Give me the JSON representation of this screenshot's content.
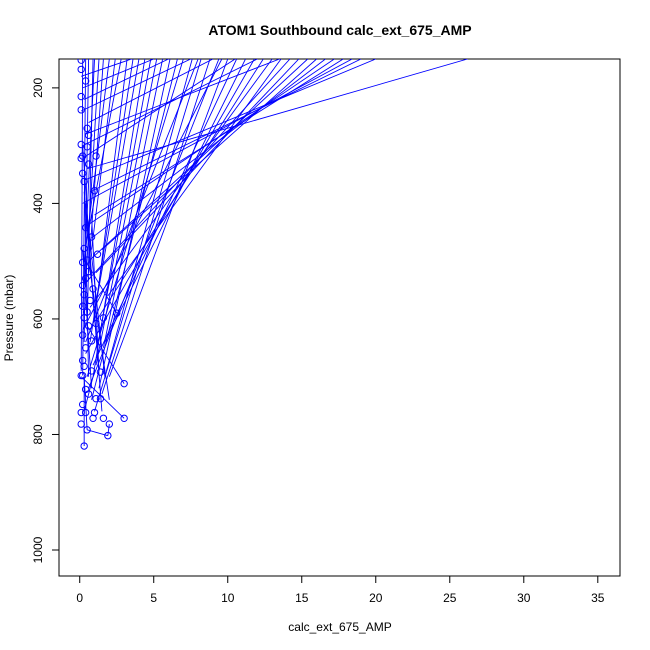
{
  "chart_data": {
    "type": "scatter",
    "title": "ATOM1 Southbound calc_ext_675_AMP",
    "xlabel": "calc_ext_675_AMP",
    "ylabel": "Pressure (mbar)",
    "xlim": [
      -1.4,
      36.5
    ],
    "ylim": [
      1045,
      150
    ],
    "y_reversed": true,
    "x_ticks": [
      "0",
      "5",
      "10",
      "15",
      "20",
      "25",
      "30",
      "35"
    ],
    "x_tick_values": [
      0,
      5,
      10,
      15,
      20,
      25,
      30,
      35
    ],
    "y_ticks": [
      "200",
      "400",
      "600",
      "800",
      "1000"
    ],
    "y_tick_values": [
      200,
      400,
      600,
      800,
      1000
    ],
    "series_color": "#0000ff",
    "grid": false,
    "legend": "none",
    "series": [
      {
        "values": [
          [
            0.3,
            820
          ],
          [
            0.5,
            792
          ],
          [
            1.9,
            802
          ],
          [
            2.0,
            782
          ],
          [
            3.0,
            772
          ],
          [
            0.9,
            772
          ],
          [
            1.0,
            762
          ],
          [
            0.4,
            762
          ],
          [
            0.1,
            782
          ],
          [
            0.1,
            762
          ],
          [
            0.2,
            748
          ],
          [
            1.6,
            772
          ],
          [
            1.4,
            738
          ],
          [
            1.1,
            738
          ],
          [
            0.6,
            730
          ],
          [
            0.4,
            722
          ],
          [
            3.0,
            712
          ],
          [
            2.5,
            590
          ],
          [
            1.6,
            598
          ],
          [
            1.4,
            692
          ],
          [
            0.8,
            690
          ],
          [
            0.2,
            698
          ],
          [
            0.1,
            698
          ],
          [
            0.3,
            682
          ],
          [
            0.2,
            672
          ],
          [
            0.4,
            650
          ],
          [
            0.8,
            638
          ],
          [
            0.2,
            628
          ],
          [
            0.6,
            612
          ],
          [
            1.1,
            608
          ],
          [
            0.3,
            598
          ],
          [
            0.5,
            588
          ],
          [
            0.2,
            578
          ],
          [
            0.7,
            568
          ],
          [
            0.3,
            558
          ],
          [
            0.9,
            548
          ],
          [
            0.2,
            542
          ],
          [
            0.4,
            530
          ],
          [
            0.6,
            518
          ],
          [
            0.2,
            502
          ],
          [
            0.5,
            498
          ],
          [
            1.2,
            488
          ],
          [
            0.3,
            478
          ],
          [
            0.8,
            458
          ],
          [
            0.4,
            442
          ],
          [
            1.0,
            378
          ],
          [
            0.3,
            362
          ],
          [
            0.2,
            348
          ],
          [
            0.6,
            332
          ],
          [
            0.1,
            322
          ],
          [
            0.2,
            318
          ],
          [
            1.1,
            318
          ],
          [
            0.5,
            302
          ],
          [
            0.1,
            298
          ],
          [
            0.6,
            282
          ],
          [
            0.5,
            270
          ],
          [
            0.1,
            238
          ],
          [
            0.1,
            215
          ],
          [
            0.1,
            168
          ],
          [
            0.1,
            152
          ],
          [
            0.4,
            188
          ]
        ],
        "lines": [
          [
            0.3,
            820,
            0.3,
            700
          ],
          [
            0.3,
            700,
            0.5,
            792
          ],
          [
            0.5,
            792,
            1.9,
            802
          ],
          [
            1.9,
            802,
            2.0,
            782
          ],
          [
            0.1,
            700,
            3.0,
            772
          ],
          [
            0.2,
            600,
            3.0,
            712
          ],
          [
            0.4,
            500,
            2.5,
            590
          ],
          [
            0.3,
            760,
            0.9,
            700
          ],
          [
            0.2,
            698,
            0.4,
            150
          ],
          [
            0.1,
            690,
            0.2,
            150
          ],
          [
            0.3,
            640,
            0.6,
            150
          ],
          [
            0.5,
            620,
            0.9,
            150
          ],
          [
            0.2,
            580,
            1.0,
            150
          ],
          [
            0.4,
            540,
            1.3,
            150
          ],
          [
            0.6,
            520,
            1.6,
            150
          ],
          [
            0.3,
            500,
            2.0,
            150
          ],
          [
            0.8,
            480,
            2.4,
            150
          ],
          [
            0.5,
            460,
            2.8,
            150
          ],
          [
            1.0,
            600,
            3.2,
            150
          ],
          [
            0.7,
            640,
            3.6,
            150
          ],
          [
            1.2,
            560,
            4.0,
            150
          ],
          [
            0.9,
            700,
            4.4,
            150
          ],
          [
            1.4,
            620,
            4.8,
            150
          ],
          [
            1.1,
            680,
            5.2,
            150
          ],
          [
            1.6,
            650,
            5.6,
            150
          ],
          [
            1.3,
            720,
            6.1,
            150
          ],
          [
            0.8,
            740,
            6.6,
            150
          ],
          [
            0.5,
            700,
            7.0,
            150
          ],
          [
            1.8,
            690,
            7.6,
            150
          ],
          [
            1.0,
            760,
            8.2,
            150
          ],
          [
            1.5,
            730,
            8.8,
            150
          ],
          [
            0.6,
            720,
            9.4,
            150
          ],
          [
            2.0,
            700,
            10.0,
            150
          ],
          [
            0.9,
            680,
            10.6,
            150
          ],
          [
            1.7,
            640,
            11.2,
            150
          ],
          [
            0.4,
            660,
            11.8,
            150
          ],
          [
            1.2,
            600,
            12.4,
            150
          ],
          [
            0.7,
            580,
            13.0,
            150
          ],
          [
            1.9,
            560,
            13.6,
            150
          ],
          [
            0.3,
            540,
            14.2,
            150
          ],
          [
            1.1,
            520,
            14.8,
            150
          ],
          [
            0.6,
            500,
            15.4,
            150
          ],
          [
            1.5,
            480,
            16.0,
            150
          ],
          [
            0.8,
            460,
            16.6,
            150
          ],
          [
            0.4,
            440,
            17.2,
            150
          ],
          [
            1.0,
            420,
            17.8,
            150
          ],
          [
            0.2,
            400,
            18.4,
            150
          ],
          [
            0.7,
            380,
            19.0,
            150
          ],
          [
            0.3,
            360,
            20.0,
            150
          ],
          [
            0.5,
            340,
            26.2,
            150
          ],
          [
            0.3,
            320,
            10.5,
            150
          ],
          [
            0.2,
            300,
            12.0,
            150
          ],
          [
            0.4,
            280,
            13.5,
            150
          ],
          [
            0.6,
            260,
            9.0,
            150
          ],
          [
            0.1,
            240,
            7.5,
            150
          ],
          [
            0.3,
            220,
            6.0,
            150
          ],
          [
            0.2,
            200,
            5.0,
            150
          ],
          [
            0.1,
            180,
            3.5,
            150
          ],
          [
            0.4,
            640,
            8.0,
            150
          ],
          [
            0.2,
            620,
            9.6,
            150
          ],
          [
            1.0,
            600,
            0.2,
            300
          ],
          [
            0.6,
            700,
            0.3,
            350
          ],
          [
            1.3,
            690,
            0.8,
            420
          ],
          [
            1.5,
            760,
            0.4,
            400
          ],
          [
            2.0,
            740,
            0.6,
            500
          ],
          [
            0.8,
            720,
            0.2,
            480
          ],
          [
            1.7,
            700,
            0.5,
            420
          ],
          [
            1.2,
            650,
            0.3,
            380
          ]
        ]
      }
    ]
  }
}
